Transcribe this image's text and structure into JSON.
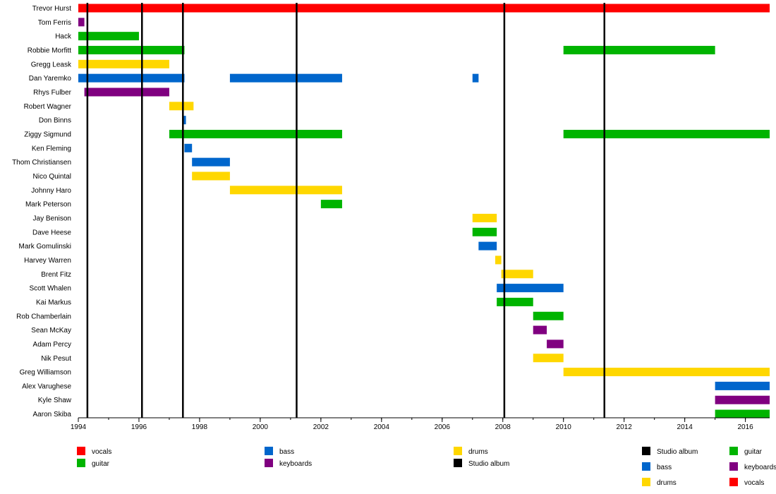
{
  "colors": {
    "vocals": "#ff0000",
    "guitar": "#00b400",
    "bass": "#0066cc",
    "keyboards": "#800080",
    "drums": "#ffd700",
    "album": "#000000"
  },
  "chart_data": {
    "type": "bar",
    "subtype": "horizontal timeline",
    "title": "",
    "xlabel": "",
    "ylabel": "",
    "xlim": [
      1994,
      2016.8
    ],
    "x_ticks": [
      1994,
      1996,
      1998,
      2000,
      2002,
      2004,
      2006,
      2008,
      2010,
      2012,
      2014,
      2016
    ],
    "grid": false,
    "members": [
      {
        "name": "Trevor Hurst",
        "bars": [
          {
            "start": 1994,
            "end": 2016.8,
            "role": "vocals"
          }
        ]
      },
      {
        "name": "Tom Ferris",
        "bars": [
          {
            "start": 1994,
            "end": 1994.2,
            "role": "keyboards"
          }
        ]
      },
      {
        "name": "Hack",
        "bars": [
          {
            "start": 1994,
            "end": 1996.0,
            "role": "guitar"
          }
        ]
      },
      {
        "name": "Robbie Morfitt",
        "bars": [
          {
            "start": 1994,
            "end": 1997.5,
            "role": "guitar"
          },
          {
            "start": 2010.0,
            "end": 2015.0,
            "role": "guitar"
          }
        ]
      },
      {
        "name": "Gregg Leask",
        "bars": [
          {
            "start": 1994,
            "end": 1997.0,
            "role": "drums"
          }
        ]
      },
      {
        "name": "Dan Yaremko",
        "bars": [
          {
            "start": 1994,
            "end": 1997.5,
            "role": "bass"
          },
          {
            "start": 1999.0,
            "end": 2002.7,
            "role": "bass"
          },
          {
            "start": 2007.0,
            "end": 2007.2,
            "role": "bass"
          }
        ]
      },
      {
        "name": "Rhys Fulber",
        "bars": [
          {
            "start": 1994.2,
            "end": 1997.0,
            "role": "keyboards"
          }
        ]
      },
      {
        "name": "Robert Wagner",
        "bars": [
          {
            "start": 1997.0,
            "end": 1997.8,
            "role": "drums"
          }
        ]
      },
      {
        "name": "Don Binns",
        "bars": [
          {
            "start": 1997.45,
            "end": 1997.55,
            "role": "bass"
          }
        ]
      },
      {
        "name": "Ziggy Sigmund",
        "bars": [
          {
            "start": 1997.0,
            "end": 2002.7,
            "role": "guitar"
          },
          {
            "start": 2010.0,
            "end": 2016.8,
            "role": "guitar"
          }
        ]
      },
      {
        "name": "Ken Fleming",
        "bars": [
          {
            "start": 1997.5,
            "end": 1997.75,
            "role": "bass"
          }
        ]
      },
      {
        "name": "Thom Christiansen",
        "bars": [
          {
            "start": 1997.75,
            "end": 1999.0,
            "role": "bass"
          }
        ]
      },
      {
        "name": "Nico Quintal",
        "bars": [
          {
            "start": 1997.75,
            "end": 1999.0,
            "role": "drums"
          }
        ]
      },
      {
        "name": "Johnny Haro",
        "bars": [
          {
            "start": 1999.0,
            "end": 2002.7,
            "role": "drums"
          }
        ]
      },
      {
        "name": "Mark Peterson",
        "bars": [
          {
            "start": 2002.0,
            "end": 2002.7,
            "role": "guitar"
          }
        ]
      },
      {
        "name": "Jay Benison",
        "bars": [
          {
            "start": 2007.0,
            "end": 2007.8,
            "role": "drums"
          }
        ]
      },
      {
        "name": "Dave Heese",
        "bars": [
          {
            "start": 2007.0,
            "end": 2007.8,
            "role": "guitar"
          }
        ]
      },
      {
        "name": "Mark Gomulinski",
        "bars": [
          {
            "start": 2007.2,
            "end": 2007.8,
            "role": "bass"
          }
        ]
      },
      {
        "name": "Harvey Warren",
        "bars": [
          {
            "start": 2007.75,
            "end": 2007.95,
            "role": "drums"
          }
        ]
      },
      {
        "name": "Brent Fitz",
        "bars": [
          {
            "start": 2007.95,
            "end": 2009.0,
            "role": "drums"
          }
        ]
      },
      {
        "name": "Scott Whalen",
        "bars": [
          {
            "start": 2007.8,
            "end": 2010.0,
            "role": "bass"
          }
        ]
      },
      {
        "name": "Kai Markus",
        "bars": [
          {
            "start": 2007.8,
            "end": 2009.0,
            "role": "guitar"
          }
        ]
      },
      {
        "name": "Rob Chamberlain",
        "bars": [
          {
            "start": 2009.0,
            "end": 2010.0,
            "role": "guitar"
          }
        ]
      },
      {
        "name": "Sean McKay",
        "bars": [
          {
            "start": 2009.0,
            "end": 2009.45,
            "role": "keyboards"
          }
        ]
      },
      {
        "name": "Adam Percy",
        "bars": [
          {
            "start": 2009.45,
            "end": 2010.0,
            "role": "keyboards"
          }
        ]
      },
      {
        "name": "Nik Pesut",
        "bars": [
          {
            "start": 2009.0,
            "end": 2010.0,
            "role": "drums"
          }
        ]
      },
      {
        "name": "Greg Williamson",
        "bars": [
          {
            "start": 2010.0,
            "end": 2016.8,
            "role": "drums"
          }
        ]
      },
      {
        "name": "Alex Varughese",
        "bars": [
          {
            "start": 2015.0,
            "end": 2016.8,
            "role": "bass"
          }
        ]
      },
      {
        "name": "Kyle Shaw",
        "bars": [
          {
            "start": 2015.0,
            "end": 2016.8,
            "role": "keyboards"
          }
        ]
      },
      {
        "name": "Aaron Skiba",
        "bars": [
          {
            "start": 2015.0,
            "end": 2016.8,
            "role": "guitar"
          }
        ]
      }
    ],
    "studio_albums": [
      1994.3,
      1996.1,
      1997.45,
      2001.2,
      2008.05,
      2011.35
    ],
    "legend": {
      "placement": "bottom",
      "groups": [
        {
          "items": [
            {
              "role": "vocals",
              "label": "vocals"
            },
            {
              "role": "guitar",
              "label": "guitar"
            }
          ]
        },
        {
          "items": [
            {
              "role": "bass",
              "label": "bass"
            },
            {
              "role": "keyboards",
              "label": "keyboards"
            }
          ]
        },
        {
          "items": [
            {
              "role": "drums",
              "label": "drums"
            },
            {
              "role": "album",
              "label": "Studio album"
            }
          ]
        },
        {
          "items": [
            {
              "role": "album",
              "label": "Studio album"
            },
            {
              "role": "bass",
              "label": "bass"
            },
            {
              "role": "drums",
              "label": "drums"
            },
            {
              "role": "guitar",
              "label": "guitar"
            },
            {
              "role": "keyboards",
              "label": "keyboards"
            },
            {
              "role": "vocals",
              "label": "vocals"
            }
          ]
        }
      ]
    }
  }
}
